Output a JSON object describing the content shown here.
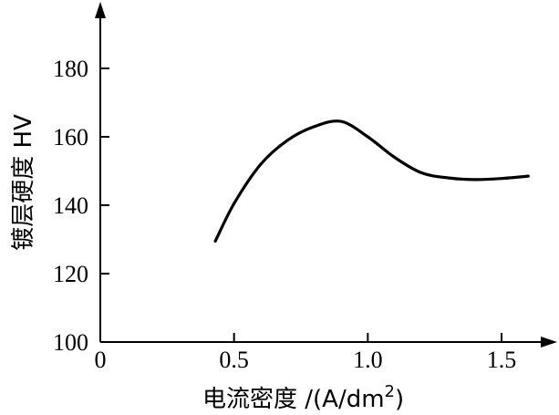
{
  "chart_data": {
    "type": "line",
    "xlabel": "电流密度 /(A/dm",
    "xlabel_sup": "2",
    "xlabel_close": ")",
    "ylabel": "镀层硬度 HV",
    "xlim": [
      0,
      1.7
    ],
    "ylim": [
      100,
      195
    ],
    "xticks": [
      0,
      0.5,
      1.0,
      1.5
    ],
    "xtick_labels": [
      "0",
      "0.5",
      "1.0",
      "1.5"
    ],
    "yticks": [
      100,
      120,
      140,
      160,
      180
    ],
    "ytick_labels": [
      "100",
      "120",
      "140",
      "160",
      "180"
    ],
    "series": [
      {
        "x": [
          0.43,
          0.5,
          0.6,
          0.7,
          0.8,
          0.9,
          1.0,
          1.1,
          1.2,
          1.3,
          1.4,
          1.5,
          1.6
        ],
        "y": [
          129.5,
          140.5,
          152.0,
          159.0,
          163.0,
          164.5,
          160.0,
          154.0,
          149.5,
          148.0,
          147.5,
          147.8,
          148.5
        ]
      }
    ]
  }
}
